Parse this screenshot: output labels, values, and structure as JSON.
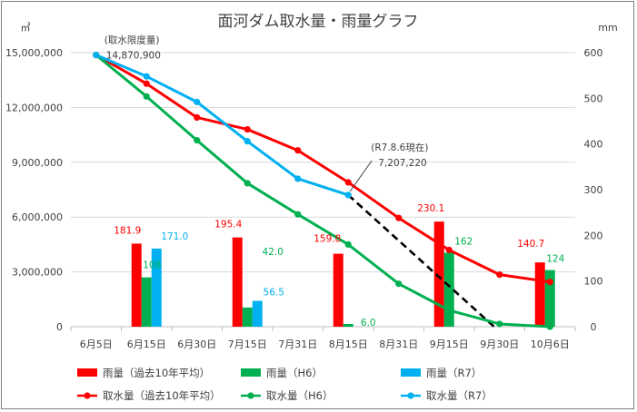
{
  "chart_data": {
    "type": "bar+line",
    "title": "面河ダム取水量・雨量グラフ",
    "y_left_unit": "㎥",
    "y_right_unit": "mm",
    "categories": [
      "6月5日",
      "6月15日",
      "6月30日",
      "7月15日",
      "7月31日",
      "8月15日",
      "8月31日",
      "9月15日",
      "9月30日",
      "10月6日"
    ],
    "y_left_ticks": [
      "0",
      "3,000,000",
      "6,000,000",
      "9,000,000",
      "12,000,000",
      "15,000,000"
    ],
    "y_right_ticks": [
      "0",
      "100",
      "200",
      "300",
      "400",
      "500",
      "600"
    ],
    "y_left_range": [
      0,
      15000000
    ],
    "y_right_range": [
      0,
      600
    ],
    "bar_series": [
      {
        "name": "雨量（過去10年平均）",
        "color": "#ff0000",
        "values": [
          null,
          181.9,
          null,
          195.4,
          null,
          159.8,
          null,
          230.1,
          null,
          140.7
        ],
        "labels": [
          "",
          "181.9",
          "",
          "195.4",
          "",
          "159.8",
          "",
          "230.1",
          "",
          "140.7"
        ]
      },
      {
        "name": "雨量（H6）",
        "color": "#00b050",
        "values": [
          null,
          108,
          null,
          42.0,
          null,
          6.0,
          null,
          162,
          null,
          124
        ],
        "labels": [
          "",
          "108",
          "",
          "42.0",
          "",
          "6.0",
          "",
          "162",
          "",
          "124"
        ]
      },
      {
        "name": "雨量（R7）",
        "color": "#00b0f0",
        "values": [
          null,
          171.0,
          null,
          56.5,
          null,
          null,
          null,
          null,
          null,
          null
        ],
        "labels": [
          "",
          "171.0",
          "",
          "56.5",
          "",
          "",
          "",
          "",
          "",
          ""
        ]
      }
    ],
    "line_series": [
      {
        "name": "取水量（過去10年平均）",
        "color": "#ff0000",
        "values": [
          14870900,
          13300000,
          11450000,
          10800000,
          9650000,
          7900000,
          5950000,
          4200000,
          2850000,
          2450000
        ]
      },
      {
        "name": "取水量（H6）",
        "color": "#00b050",
        "values": [
          14870900,
          12600000,
          10200000,
          7850000,
          6150000,
          4500000,
          2350000,
          900000,
          150000,
          0
        ]
      },
      {
        "name": "取水量（R7）",
        "color": "#00b0f0",
        "values": [
          14870900,
          13700000,
          12300000,
          10150000,
          8100000,
          7207220,
          null,
          null,
          null,
          null
        ]
      }
    ],
    "projection_line": {
      "from_category": "8月15日",
      "from_value": 7207220,
      "to_category": "9月30日",
      "to_value": 0,
      "style": "dashed",
      "color": "#000000"
    },
    "annotations": [
      {
        "label": "(取水限度量)",
        "value_text": "14,870,900",
        "category": "6月5日",
        "value": 14870900
      },
      {
        "label": "(R7.8.6現在)",
        "value_text": "7,207,220",
        "category": "8月15日",
        "value": 7207220
      }
    ],
    "grid": true,
    "legend_position": "bottom"
  }
}
